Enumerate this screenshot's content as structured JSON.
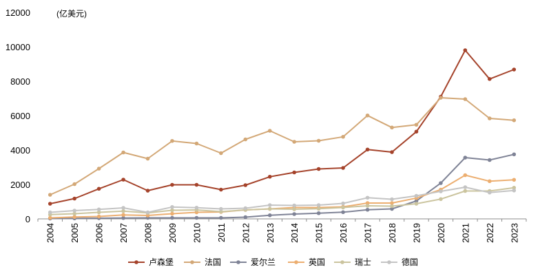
{
  "chart_data": {
    "type": "line",
    "title": "",
    "unit_label": "(亿美元)",
    "xlabel": "",
    "ylabel": "",
    "ylim": [
      0,
      12000
    ],
    "yticks": [
      0,
      2000,
      4000,
      6000,
      8000,
      10000,
      12000
    ],
    "categories": [
      "2004",
      "2005",
      "2006",
      "2007",
      "2008",
      "2009",
      "2010",
      "2011",
      "2012",
      "2013",
      "2014",
      "2015",
      "2016",
      "2017",
      "2018",
      "2019",
      "2020",
      "2021",
      "2022",
      "2023"
    ],
    "grid": false,
    "legend_position": "bottom",
    "series": [
      {
        "name": "卢森堡",
        "color": "#a5432b",
        "values": [
          880,
          1180,
          1750,
          2280,
          1640,
          1980,
          1980,
          1700,
          1960,
          2450,
          2700,
          2900,
          2960,
          4030,
          3880,
          5070,
          7100,
          9800,
          8130,
          8680
        ]
      },
      {
        "name": "法国",
        "color": "#d3a877",
        "values": [
          1400,
          2020,
          2920,
          3860,
          3500,
          4530,
          4380,
          3820,
          4620,
          5120,
          4480,
          4540,
          4770,
          6010,
          5310,
          5470,
          7040,
          6960,
          5840,
          5730
        ]
      },
      {
        "name": "爱尔兰",
        "color": "#7f8396",
        "values": [
          20,
          30,
          40,
          50,
          60,
          60,
          60,
          60,
          100,
          210,
          280,
          330,
          390,
          530,
          580,
          1040,
          2080,
          3560,
          3420,
          3750
        ]
      },
      {
        "name": "英国",
        "color": "#ecae70",
        "values": [
          60,
          110,
          140,
          230,
          200,
          300,
          380,
          400,
          520,
          580,
          660,
          660,
          700,
          920,
          920,
          1210,
          1700,
          2540,
          2190,
          2270
        ]
      },
      {
        "name": "瑞士",
        "color": "#cbc49e",
        "values": [
          250,
          300,
          380,
          450,
          350,
          500,
          520,
          420,
          520,
          580,
          560,
          590,
          660,
          760,
          740,
          880,
          1150,
          1620,
          1620,
          1810
        ]
      },
      {
        "name": "德国",
        "color": "#c4c4c4",
        "values": [
          380,
          480,
          550,
          640,
          380,
          690,
          650,
          580,
          620,
          800,
          780,
          800,
          900,
          1230,
          1140,
          1340,
          1600,
          1840,
          1530,
          1650
        ]
      }
    ]
  }
}
